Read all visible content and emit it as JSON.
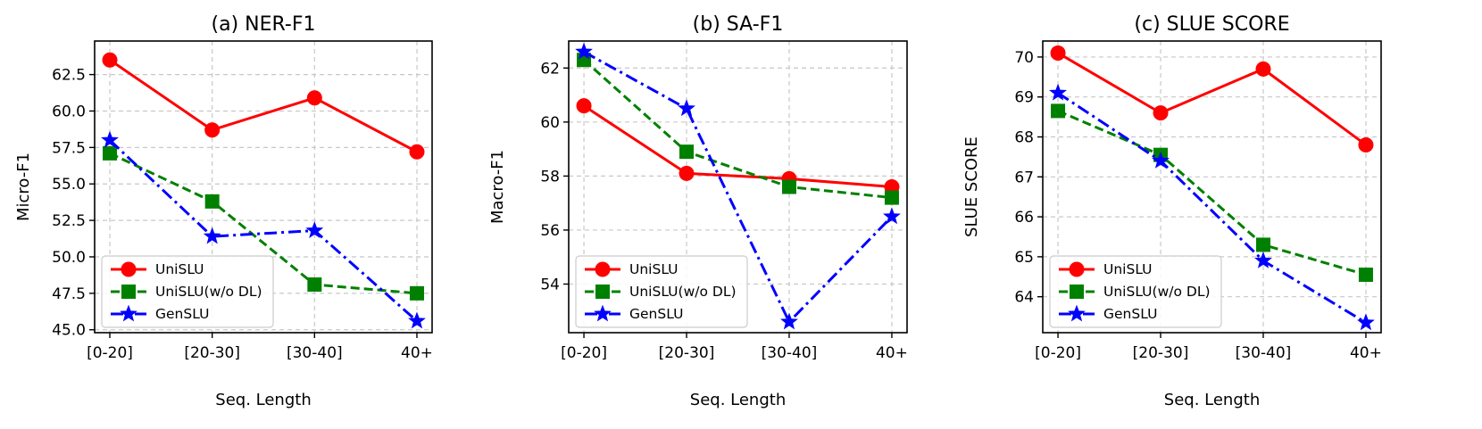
{
  "chart_data": [
    {
      "type": "line",
      "title": "(a) NER-F1",
      "xlabel": "Seq. Length",
      "ylabel": "Micro-F1",
      "categories": [
        "[0-20]",
        "[20-30]",
        "[30-40]",
        "40+"
      ],
      "ylim": [
        44.8,
        64.8
      ],
      "yticks": [
        "45.0",
        "47.5",
        "50.0",
        "52.5",
        "55.0",
        "57.5",
        "60.0",
        "62.5"
      ],
      "grid": true,
      "legend_position": "lower-left",
      "series": [
        {
          "name": "UniSLU",
          "values": [
            63.5,
            58.7,
            60.9,
            57.2
          ],
          "color": "#ff0000",
          "style": "solid",
          "marker": "circle"
        },
        {
          "name": "UniSLU(w/o DL)",
          "values": [
            57.1,
            53.8,
            48.1,
            47.5
          ],
          "color": "#008000",
          "style": "dashed",
          "marker": "square"
        },
        {
          "name": "GenSLU",
          "values": [
            58.0,
            51.4,
            51.8,
            45.6
          ],
          "color": "#0000ff",
          "style": "dashdot",
          "marker": "star"
        }
      ]
    },
    {
      "type": "line",
      "title": "(b) SA-F1",
      "xlabel": "Seq. Length",
      "ylabel": "Macro-F1",
      "categories": [
        "[0-20]",
        "[20-30]",
        "[30-40]",
        "40+"
      ],
      "ylim": [
        52.2,
        63.0
      ],
      "yticks": [
        "54",
        "56",
        "58",
        "60",
        "62"
      ],
      "grid": true,
      "legend_position": "lower-left",
      "series": [
        {
          "name": "UniSLU",
          "values": [
            60.6,
            58.1,
            57.9,
            57.6
          ],
          "color": "#ff0000",
          "style": "solid",
          "marker": "circle"
        },
        {
          "name": "UniSLU(w/o DL)",
          "values": [
            62.3,
            58.9,
            57.6,
            57.2
          ],
          "color": "#008000",
          "style": "dashed",
          "marker": "square"
        },
        {
          "name": "GenSLU",
          "values": [
            62.6,
            60.5,
            52.6,
            56.5
          ],
          "color": "#0000ff",
          "style": "dashdot",
          "marker": "star"
        }
      ]
    },
    {
      "type": "line",
      "title": "(c) SLUE SCORE",
      "xlabel": "Seq. Length",
      "ylabel": "SLUE SCORE",
      "categories": [
        "[0-20]",
        "[20-30]",
        "[30-40]",
        "40+"
      ],
      "ylim": [
        63.1,
        70.4
      ],
      "yticks": [
        "64",
        "65",
        "66",
        "67",
        "68",
        "69",
        "70"
      ],
      "grid": true,
      "legend_position": "lower-left",
      "series": [
        {
          "name": "UniSLU",
          "values": [
            70.1,
            68.6,
            69.7,
            67.8
          ],
          "color": "#ff0000",
          "style": "solid",
          "marker": "circle"
        },
        {
          "name": "UniSLU(w/o DL)",
          "values": [
            68.65,
            67.55,
            65.3,
            64.55
          ],
          "color": "#008000",
          "style": "dashed",
          "marker": "square"
        },
        {
          "name": "GenSLU",
          "values": [
            69.1,
            67.4,
            64.9,
            63.35
          ],
          "color": "#0000ff",
          "style": "dashdot",
          "marker": "star"
        }
      ]
    }
  ]
}
